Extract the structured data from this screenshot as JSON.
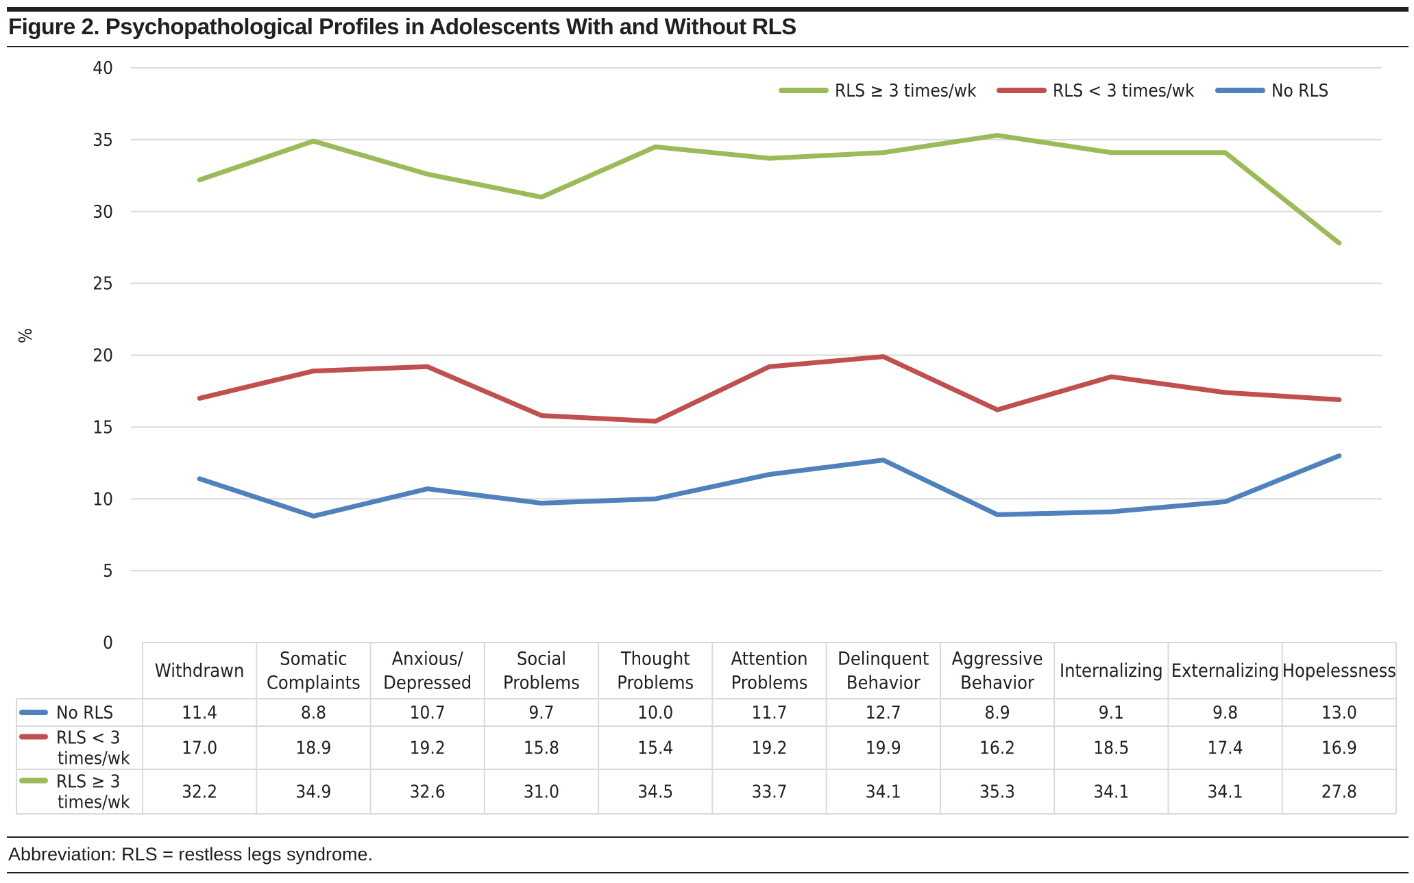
{
  "title": "Figure 2. Psychopathological Profiles in Adolescents With and Without RLS",
  "footnote": "Abbreviation: RLS = restless legs syndrome.",
  "chart_data": {
    "type": "line",
    "ylabel": "%",
    "xlabel": "",
    "ylim": [
      0,
      40
    ],
    "yticks": [
      0,
      5,
      10,
      15,
      20,
      25,
      30,
      35,
      40
    ],
    "grid": true,
    "legend_position": "top-right",
    "data_table": true,
    "categories": [
      [
        "Withdrawn"
      ],
      [
        "Somatic",
        "Complaints"
      ],
      [
        "Anxious/",
        "Depressed"
      ],
      [
        "Social",
        "Problems"
      ],
      [
        "Thought",
        "Problems"
      ],
      [
        "Attention",
        "Problems"
      ],
      [
        "Delinquent",
        "Behavior"
      ],
      [
        "Aggressive",
        "Behavior"
      ],
      [
        "Internalizing"
      ],
      [
        "Externalizing"
      ],
      [
        "Hopelessness"
      ]
    ],
    "series": [
      {
        "name": "No RLS",
        "label_lines": [
          "No RLS"
        ],
        "color": "#4f81bd",
        "values": [
          11.4,
          8.8,
          10.7,
          9.7,
          10.0,
          11.7,
          12.7,
          8.9,
          9.1,
          9.8,
          13.0
        ]
      },
      {
        "name": "RLS < 3 times/wk",
        "label_lines": [
          "RLS < 3",
          "times/wk"
        ],
        "color": "#c0504d",
        "values": [
          17.0,
          18.9,
          19.2,
          15.8,
          15.4,
          19.2,
          19.9,
          16.2,
          18.5,
          17.4,
          16.9
        ]
      },
      {
        "name": "RLS ≥ 3 times/wk",
        "label_lines": [
          "RLS ≥ 3",
          "times/wk"
        ],
        "color": "#9bbb59",
        "values": [
          32.2,
          34.9,
          32.6,
          31.0,
          34.5,
          33.7,
          34.1,
          35.3,
          34.1,
          34.1,
          27.8
        ]
      }
    ],
    "legend_order": [
      2,
      1,
      0
    ]
  }
}
